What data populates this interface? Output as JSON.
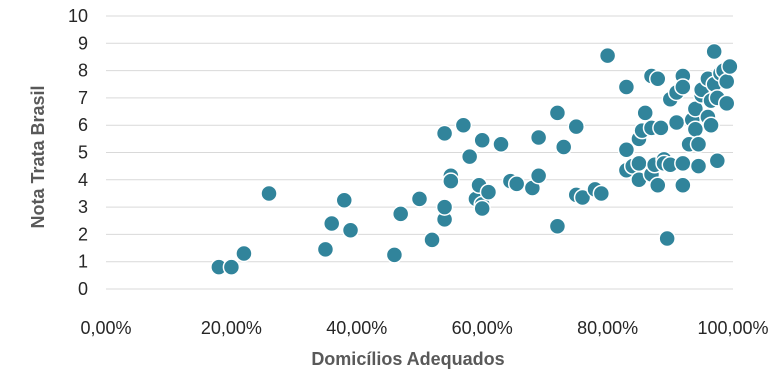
{
  "chart_data": {
    "type": "scatter",
    "title": "",
    "xlabel": "Domicílios Adequados",
    "ylabel": "Nota Trata Brasil",
    "xlim": [
      0,
      1
    ],
    "ylim": [
      0,
      10
    ],
    "x_ticks": [
      "0,00%",
      "20,00%",
      "40,00%",
      "60,00%",
      "80,00%",
      "100,00%"
    ],
    "y_ticks": [
      "0",
      "1",
      "2",
      "3",
      "4",
      "5",
      "6",
      "7",
      "8",
      "9",
      "10"
    ],
    "grid": "horizontal",
    "color": "#31849B",
    "series": [
      {
        "points": [
          [
            0.18,
            0.8
          ],
          [
            0.2,
            0.8
          ],
          [
            0.22,
            1.3
          ],
          [
            0.26,
            3.5
          ],
          [
            0.35,
            1.45
          ],
          [
            0.36,
            2.4
          ],
          [
            0.38,
            3.25
          ],
          [
            0.39,
            2.15
          ],
          [
            0.46,
            1.25
          ],
          [
            0.47,
            2.75
          ],
          [
            0.5,
            3.3
          ],
          [
            0.52,
            1.8
          ],
          [
            0.54,
            5.7
          ],
          [
            0.54,
            2.55
          ],
          [
            0.54,
            3.0
          ],
          [
            0.55,
            4.15
          ],
          [
            0.55,
            3.95
          ],
          [
            0.57,
            6.0
          ],
          [
            0.58,
            4.85
          ],
          [
            0.59,
            3.3
          ],
          [
            0.595,
            3.8
          ],
          [
            0.6,
            3.1
          ],
          [
            0.6,
            5.45
          ],
          [
            0.6,
            2.95
          ],
          [
            0.61,
            3.55
          ],
          [
            0.63,
            5.3
          ],
          [
            0.645,
            3.95
          ],
          [
            0.655,
            3.85
          ],
          [
            0.68,
            3.7
          ],
          [
            0.69,
            5.55
          ],
          [
            0.69,
            4.15
          ],
          [
            0.72,
            6.45
          ],
          [
            0.72,
            2.3
          ],
          [
            0.73,
            5.2
          ],
          [
            0.75,
            5.95
          ],
          [
            0.75,
            3.45
          ],
          [
            0.76,
            3.35
          ],
          [
            0.78,
            3.65
          ],
          [
            0.79,
            3.5
          ],
          [
            0.8,
            8.55
          ],
          [
            0.83,
            7.4
          ],
          [
            0.83,
            5.1
          ],
          [
            0.83,
            4.35
          ],
          [
            0.84,
            4.5
          ],
          [
            0.85,
            4.0
          ],
          [
            0.85,
            5.5
          ],
          [
            0.85,
            4.6
          ],
          [
            0.855,
            5.8
          ],
          [
            0.86,
            6.45
          ],
          [
            0.87,
            7.8
          ],
          [
            0.87,
            5.9
          ],
          [
            0.87,
            4.2
          ],
          [
            0.875,
            4.55
          ],
          [
            0.88,
            3.8
          ],
          [
            0.88,
            7.7
          ],
          [
            0.885,
            5.9
          ],
          [
            0.89,
            4.75
          ],
          [
            0.89,
            4.6
          ],
          [
            0.895,
            1.85
          ],
          [
            0.9,
            6.95
          ],
          [
            0.9,
            4.55
          ],
          [
            0.91,
            7.2
          ],
          [
            0.91,
            6.1
          ],
          [
            0.92,
            7.8
          ],
          [
            0.92,
            7.4
          ],
          [
            0.92,
            4.6
          ],
          [
            0.92,
            3.8
          ],
          [
            0.93,
            5.3
          ],
          [
            0.935,
            6.2
          ],
          [
            0.94,
            6.6
          ],
          [
            0.94,
            5.85
          ],
          [
            0.945,
            4.5
          ],
          [
            0.945,
            5.3
          ],
          [
            0.95,
            7.1
          ],
          [
            0.95,
            7.3
          ],
          [
            0.96,
            7.7
          ],
          [
            0.96,
            6.3
          ],
          [
            0.965,
            6.0
          ],
          [
            0.965,
            6.9
          ],
          [
            0.97,
            8.7
          ],
          [
            0.97,
            7.5
          ],
          [
            0.975,
            7.0
          ],
          [
            0.975,
            4.7
          ],
          [
            0.98,
            7.9
          ],
          [
            0.985,
            8.0
          ],
          [
            0.99,
            7.6
          ],
          [
            0.99,
            6.8
          ],
          [
            0.995,
            8.15
          ]
        ]
      }
    ]
  }
}
